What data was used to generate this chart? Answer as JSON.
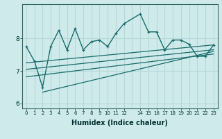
{
  "xlabel": "Humidex (Indice chaleur)",
  "bg_color": "#ceeaea",
  "grid_color": "#b8d8d8",
  "line_color": "#1a6b6b",
  "xlim": [
    -0.5,
    23.5
  ],
  "ylim": [
    5.85,
    9.05
  ],
  "yticks": [
    6,
    7,
    8
  ],
  "main_line": [
    [
      0,
      7.75
    ],
    [
      1,
      7.3
    ],
    [
      2,
      6.5
    ],
    [
      3,
      7.75
    ],
    [
      4,
      8.25
    ],
    [
      5,
      7.65
    ],
    [
      6,
      8.3
    ],
    [
      7,
      7.65
    ],
    [
      8,
      7.9
    ],
    [
      9,
      7.95
    ],
    [
      10,
      7.75
    ],
    [
      11,
      8.15
    ],
    [
      12,
      8.45
    ],
    [
      14,
      8.75
    ],
    [
      15,
      8.2
    ],
    [
      16,
      8.2
    ],
    [
      17,
      7.65
    ],
    [
      18,
      7.95
    ],
    [
      19,
      7.95
    ],
    [
      20,
      7.82
    ],
    [
      21,
      7.45
    ],
    [
      22,
      7.45
    ],
    [
      23,
      7.8
    ]
  ],
  "trend_line1": [
    [
      0,
      7.25
    ],
    [
      23,
      7.8
    ]
  ],
  "trend_line2": [
    [
      0,
      7.05
    ],
    [
      23,
      7.65
    ]
  ],
  "trend_line3": [
    [
      0,
      6.82
    ],
    [
      23,
      7.52
    ]
  ],
  "low_line": [
    [
      2,
      6.35
    ],
    [
      23,
      7.6
    ]
  ]
}
